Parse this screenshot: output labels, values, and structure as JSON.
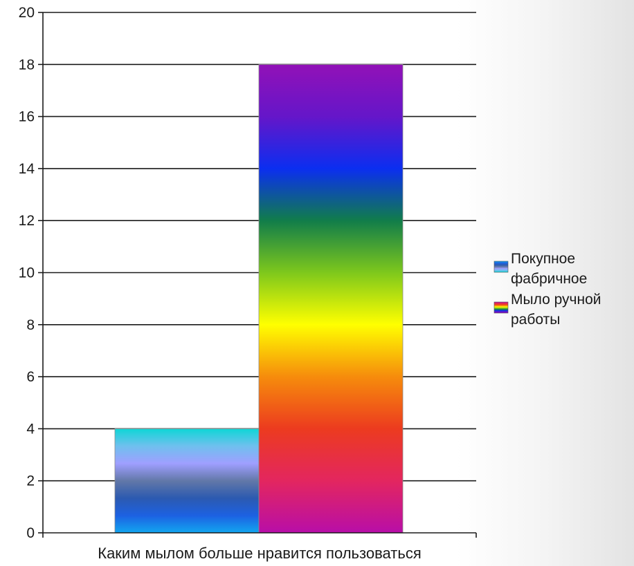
{
  "chart_data": {
    "type": "bar",
    "title": "",
    "xlabel": "",
    "ylabel": "",
    "categories": [
      "Каким мылом больше нравится пользоваться"
    ],
    "series": [
      {
        "name": "Покупное фабричное",
        "values": [
          4
        ]
      },
      {
        "name": "Мыло ручной работы",
        "values": [
          18
        ]
      }
    ],
    "ylim": [
      0,
      20
    ],
    "yticks": [
      0,
      2,
      4,
      6,
      8,
      10,
      12,
      14,
      16,
      18,
      20
    ],
    "grid": true,
    "legend": "right",
    "series_fills": [
      [
        "#12a6f0",
        "#1d61e2",
        "#2c5ab0",
        "#6278a8",
        "#9f9fff",
        "#6fc0ee",
        "#0fd6d6"
      ],
      [
        "#b80ea8",
        "#e3265f",
        "#ec3b1f",
        "#f68c0c",
        "#ffff00",
        "#7ec81c",
        "#117d4a",
        "#0b2ef0",
        "#6516c9",
        "#9211b7"
      ]
    ],
    "legend_labels": [
      [
        "Покупное",
        "фабричное"
      ],
      [
        "Мыло ручной",
        "работы"
      ]
    ]
  }
}
